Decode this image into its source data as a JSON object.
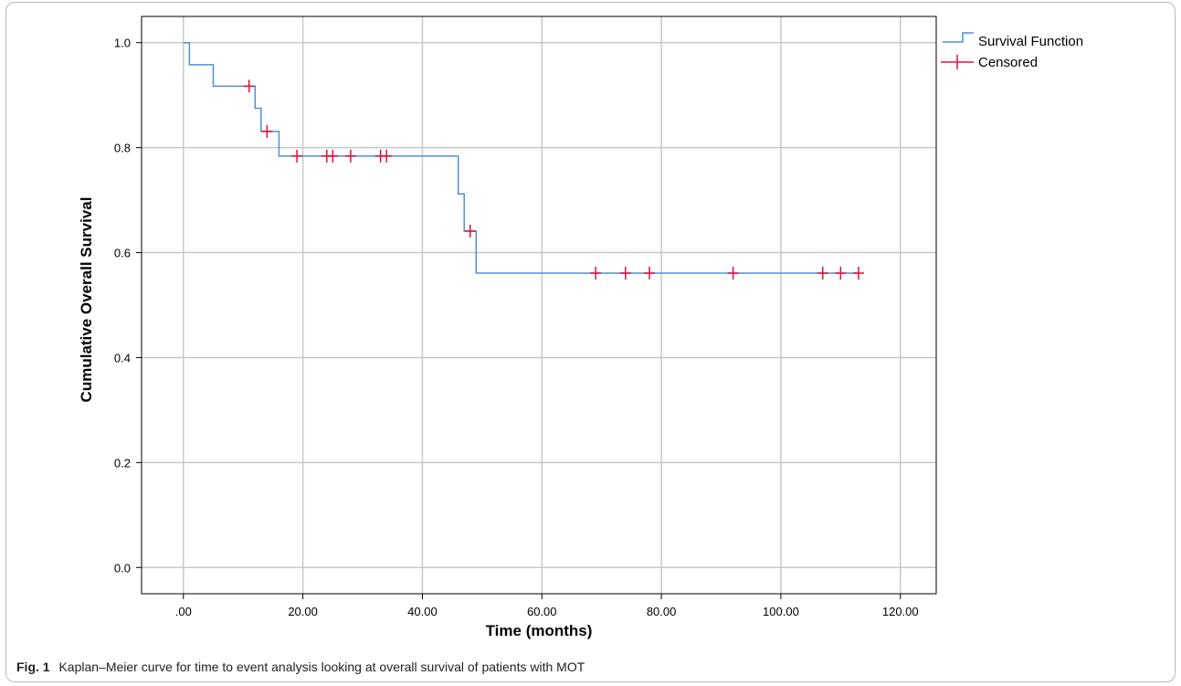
{
  "caption": {
    "label": "Fig. 1",
    "text": "Kaplan–Meier curve for time to event analysis looking at overall survival of patients with MOT"
  },
  "chart_data": {
    "type": "line",
    "title": "",
    "xlabel": "Time (months)",
    "ylabel": "Cumulative Overall Survival",
    "xlim": [
      -7,
      126
    ],
    "ylim": [
      -0.05,
      1.05
    ],
    "x_ticks": [
      0,
      20,
      40,
      60,
      80,
      100,
      120
    ],
    "x_tick_labels": [
      ".00",
      "20.00",
      "40.00",
      "60.00",
      "80.00",
      "100.00",
      "120.00"
    ],
    "y_ticks": [
      0.0,
      0.2,
      0.4,
      0.6,
      0.8,
      1.0
    ],
    "y_tick_labels": [
      "0.0",
      "0.2",
      "0.4",
      "0.6",
      "0.8",
      "1.0"
    ],
    "grid": true,
    "legend_position": "top-right",
    "series": [
      {
        "name": "Survival Function",
        "kind": "step",
        "color": "#4f8fdc",
        "x": [
          0,
          1,
          5,
          12,
          13,
          16,
          46,
          47,
          49,
          113
        ],
        "y": [
          1.0,
          0.958,
          0.917,
          0.875,
          0.831,
          0.784,
          0.712,
          0.641,
          0.561,
          0.561
        ]
      },
      {
        "name": "Censored",
        "kind": "marker",
        "color": "#e0103c",
        "points": [
          {
            "x": 11,
            "y": 0.917
          },
          {
            "x": 14,
            "y": 0.831
          },
          {
            "x": 19,
            "y": 0.784
          },
          {
            "x": 24,
            "y": 0.784
          },
          {
            "x": 25,
            "y": 0.784
          },
          {
            "x": 28,
            "y": 0.784
          },
          {
            "x": 33,
            "y": 0.784
          },
          {
            "x": 34,
            "y": 0.784
          },
          {
            "x": 48,
            "y": 0.641
          },
          {
            "x": 69,
            "y": 0.561
          },
          {
            "x": 74,
            "y": 0.561
          },
          {
            "x": 78,
            "y": 0.561
          },
          {
            "x": 92,
            "y": 0.561
          },
          {
            "x": 107,
            "y": 0.561
          },
          {
            "x": 110,
            "y": 0.561
          },
          {
            "x": 113,
            "y": 0.561
          }
        ]
      }
    ]
  }
}
